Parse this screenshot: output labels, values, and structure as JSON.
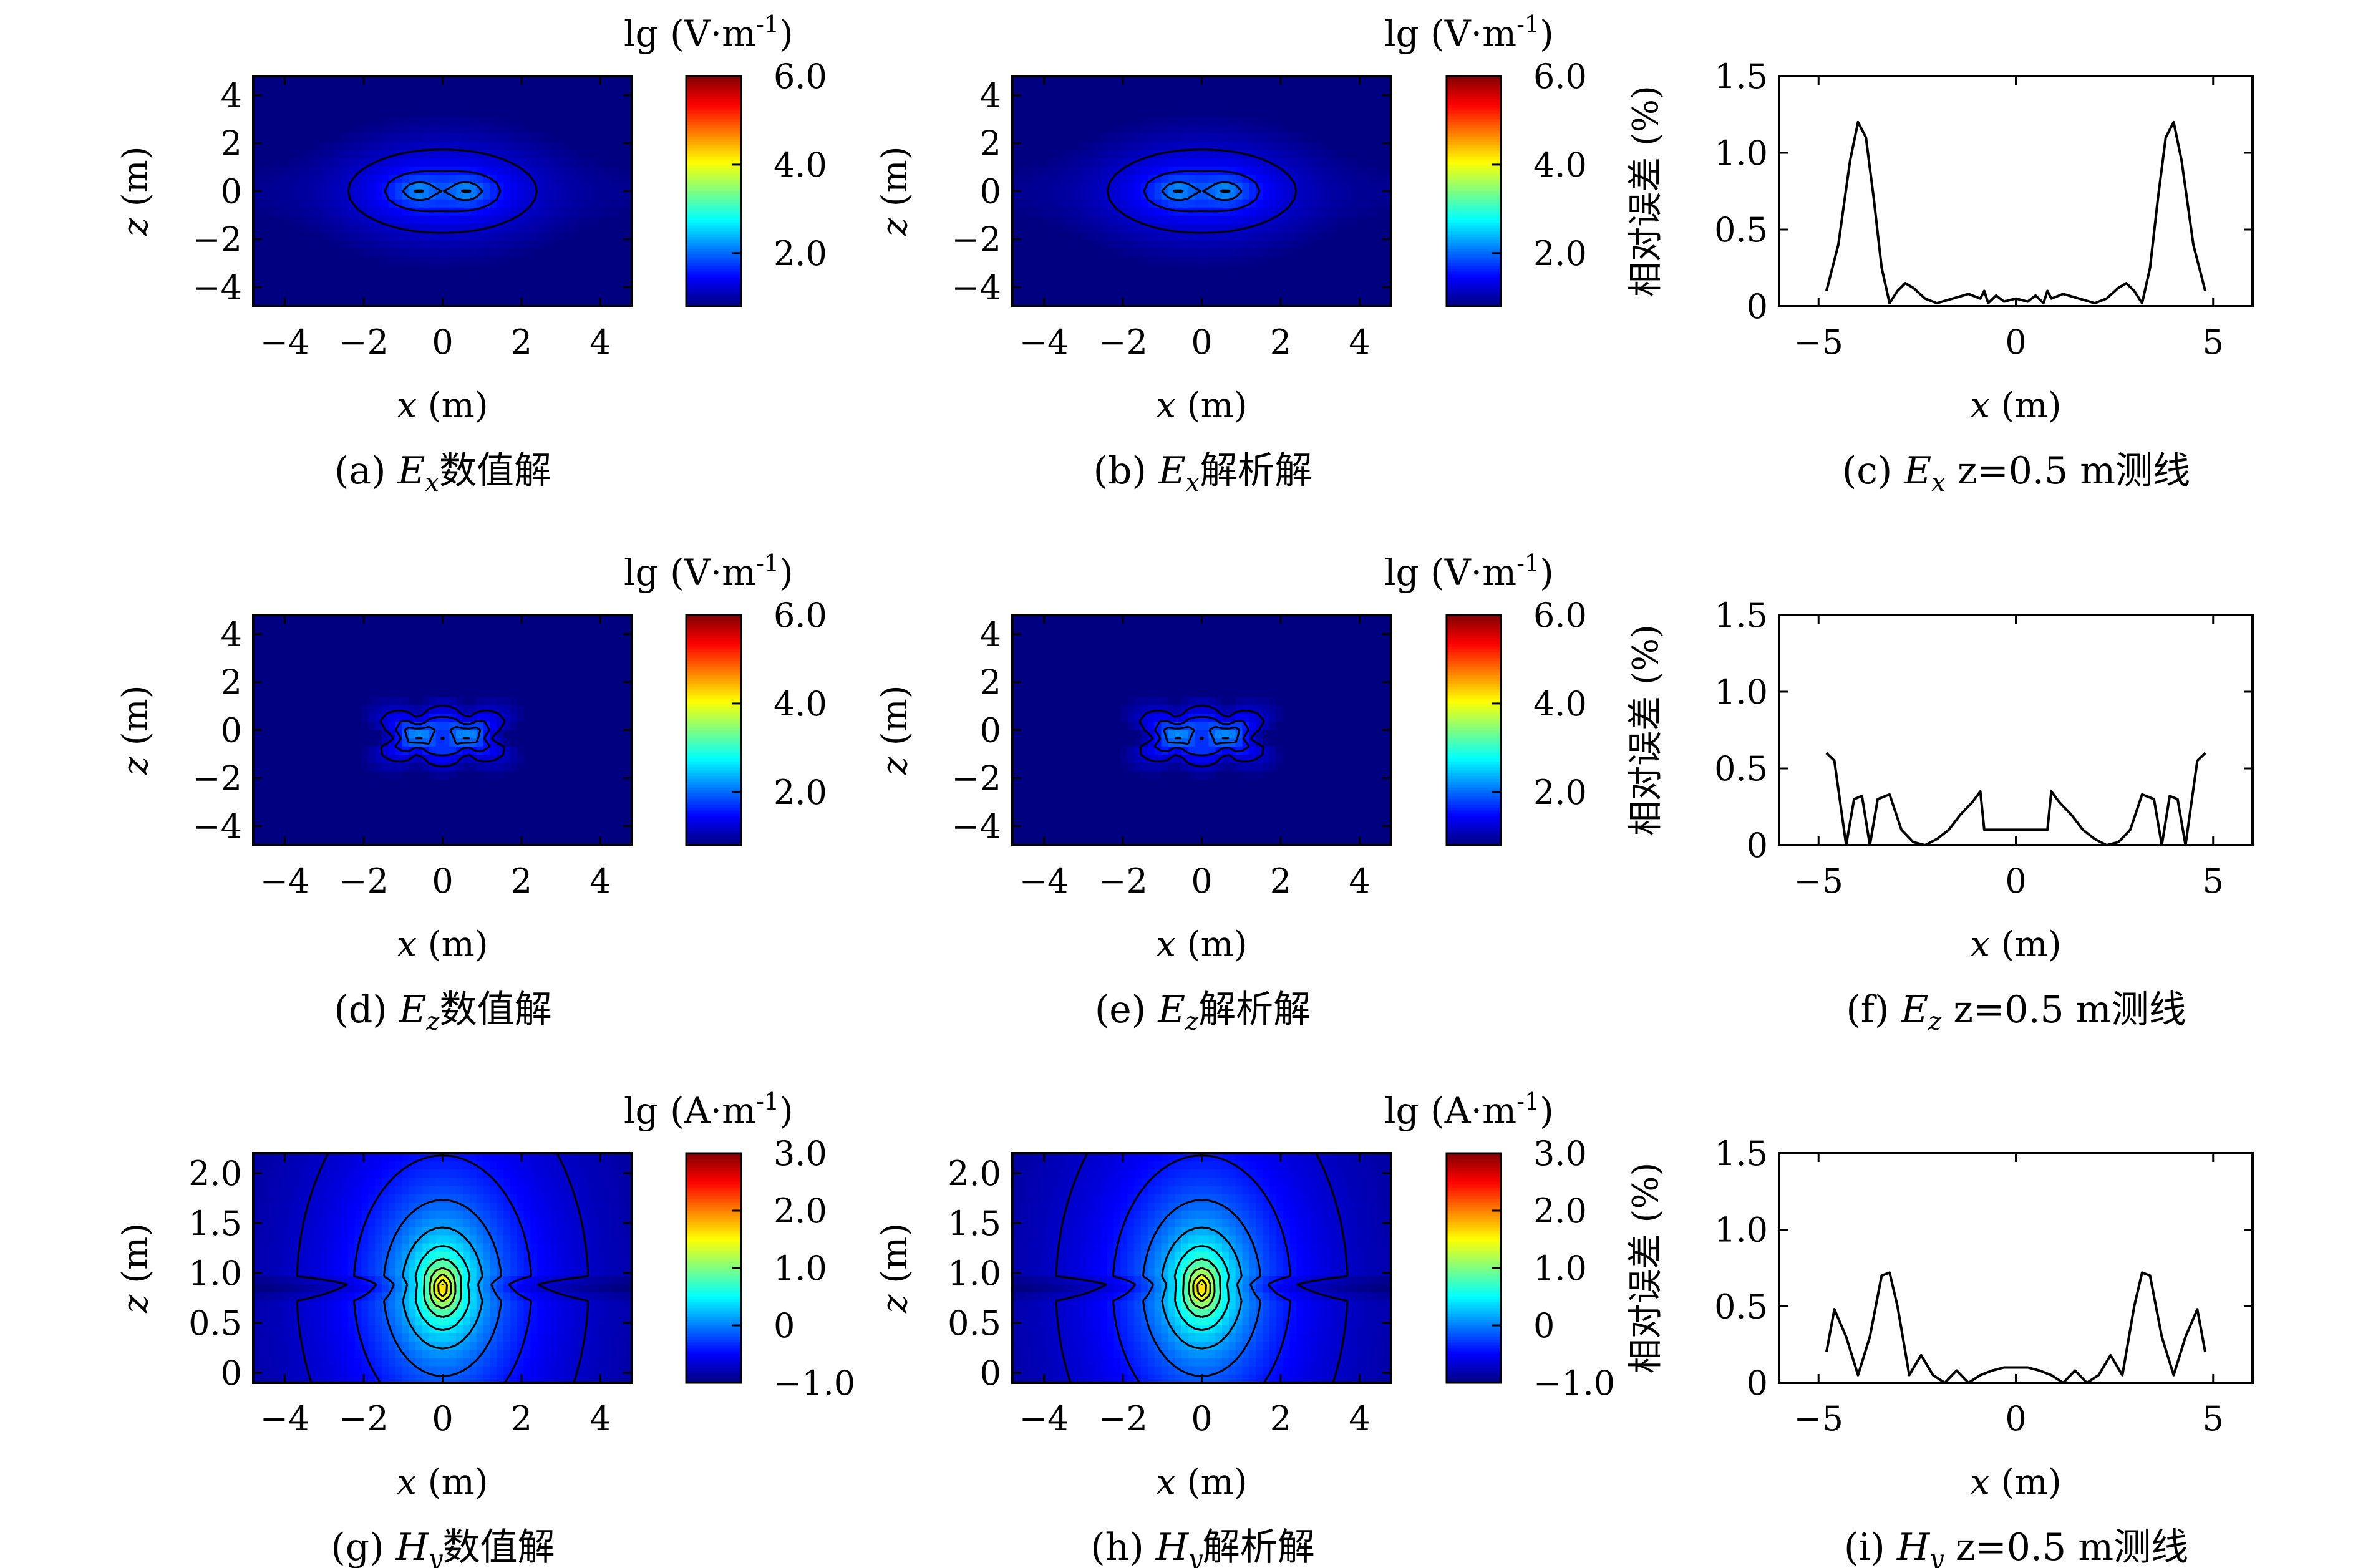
{
  "figure": {
    "rows": [
      {
        "colorbar": {
          "unit": "lg (V·m",
          "sup": "-1",
          "ticks": [
            "6.0",
            "4.0",
            "2.0"
          ],
          "range": [
            0.8,
            6.0
          ],
          "tick_values": [
            6.0,
            4.0,
            2.0
          ]
        },
        "yticks": [
          "4",
          "2",
          "0",
          "−2",
          "−4"
        ],
        "ylabel": "z (m)"
      },
      {
        "colorbar": {
          "unit": "lg (V·m",
          "sup": "-1",
          "ticks": [
            "6.0",
            "4.0",
            "2.0"
          ],
          "range": [
            0.8,
            6.0
          ],
          "tick_values": [
            6.0,
            4.0,
            2.0
          ]
        },
        "yticks": [
          "4",
          "2",
          "0",
          "−2",
          "−4"
        ],
        "ylabel": "z (m)"
      },
      {
        "colorbar": {
          "unit": "lg (A·m",
          "sup": "-1",
          "ticks": [
            "3.0",
            "2.0",
            "1.0",
            "0",
            "−1.0"
          ],
          "range": [
            -1.0,
            3.0
          ],
          "tick_values": [
            3.0,
            2.0,
            1.0,
            0,
            -1.0
          ]
        },
        "yticks": [
          "2.0",
          "1.5",
          "1.0",
          "0.5",
          "0"
        ],
        "ylabel": "z (m)"
      }
    ],
    "contour_xticks": [
      "−4",
      "−2",
      "0",
      "2",
      "4"
    ],
    "contour_xlabel": "x (m)",
    "error_xticks": [
      "−5",
      "0",
      "5"
    ],
    "error_yticks": [
      "1.5",
      "1.0",
      "0.5",
      "0"
    ],
    "error_ylabel": "相对误差 (%)",
    "error_xlabel": "x (m)",
    "captions": [
      {
        "tag": "(a)",
        "var": "E",
        "sub": "x",
        "text": "数值解"
      },
      {
        "tag": "(b)",
        "var": "E",
        "sub": "x",
        "text": "解析解"
      },
      {
        "tag": "(c)",
        "var": "E",
        "sub": "x",
        "text": " z=0.5 m测线"
      },
      {
        "tag": "(d)",
        "var": "E",
        "sub": "z",
        "text": "数值解"
      },
      {
        "tag": "(e)",
        "var": "E",
        "sub": "z",
        "text": "解析解"
      },
      {
        "tag": "(f)",
        "var": "E",
        "sub": "z",
        "text": " z=0.5 m测线"
      },
      {
        "tag": "(g)",
        "var": "H",
        "sub": "y",
        "text": "数值解"
      },
      {
        "tag": "(h)",
        "var": "H",
        "sub": "y",
        "text": "解析解"
      },
      {
        "tag": "(i)",
        "var": "H",
        "sub": "y",
        "text": " z=0.5 m测线"
      }
    ]
  },
  "chart_data": [
    {
      "panel": "(a)",
      "type": "heatmap",
      "quantity": "Ex",
      "solution": "数值解",
      "field": "dipole_x",
      "x_range": [
        -4.8,
        4.8
      ],
      "y_range": [
        -4.8,
        4.8
      ],
      "color_range": [
        0.8,
        6.0
      ],
      "colormap": "jet",
      "contour_lines": true,
      "xlabel": "x (m)",
      "ylabel": "z (m)",
      "colorbar_label": "lg (V·m-1)"
    },
    {
      "panel": "(b)",
      "type": "heatmap",
      "quantity": "Ex",
      "solution": "解析解",
      "field": "dipole_x",
      "x_range": [
        -4.8,
        4.8
      ],
      "y_range": [
        -4.8,
        4.8
      ],
      "color_range": [
        0.8,
        6.0
      ],
      "colormap": "jet",
      "contour_lines": true,
      "xlabel": "x (m)",
      "ylabel": "z (m)",
      "colorbar_label": "lg (V·m-1)"
    },
    {
      "panel": "(c)",
      "type": "line",
      "quantity": "Ex z=0.5 m",
      "xlim": [
        -6,
        6
      ],
      "ylim": [
        0,
        1.5
      ],
      "xlabel": "x (m)",
      "ylabel": "相对误差 (%)",
      "x": [
        -4.8,
        -4.5,
        -4.2,
        -4.0,
        -3.8,
        -3.6,
        -3.4,
        -3.2,
        -3.0,
        -2.8,
        -2.6,
        -2.3,
        -2.0,
        -1.6,
        -1.2,
        -0.9,
        -0.8,
        -0.7,
        -0.5,
        -0.3,
        0,
        0.3,
        0.5,
        0.7,
        0.8,
        0.9,
        1.2,
        1.6,
        2.0,
        2.3,
        2.6,
        2.8,
        3.0,
        3.2,
        3.4,
        3.6,
        3.8,
        4.0,
        4.2,
        4.5,
        4.8
      ],
      "y": [
        0.1,
        0.4,
        0.95,
        1.2,
        1.1,
        0.7,
        0.25,
        0.02,
        0.1,
        0.15,
        0.12,
        0.05,
        0.02,
        0.05,
        0.08,
        0.05,
        0.1,
        0.02,
        0.07,
        0.03,
        0.05,
        0.03,
        0.07,
        0.02,
        0.1,
        0.05,
        0.08,
        0.05,
        0.02,
        0.05,
        0.12,
        0.15,
        0.1,
        0.02,
        0.25,
        0.7,
        1.1,
        1.2,
        0.95,
        0.4,
        0.1
      ]
    },
    {
      "panel": "(d)",
      "type": "heatmap",
      "quantity": "Ez",
      "solution": "数值解",
      "field": "dipole_z_lobes",
      "x_range": [
        -4.8,
        4.8
      ],
      "y_range": [
        -4.8,
        4.8
      ],
      "color_range": [
        0.8,
        6.0
      ],
      "colormap": "jet",
      "contour_lines": true,
      "xlabel": "x (m)",
      "ylabel": "z (m)",
      "colorbar_label": "lg (V·m-1)"
    },
    {
      "panel": "(e)",
      "type": "heatmap",
      "quantity": "Ez",
      "solution": "解析解",
      "field": "dipole_z_lobes",
      "x_range": [
        -4.8,
        4.8
      ],
      "y_range": [
        -4.8,
        4.8
      ],
      "color_range": [
        0.8,
        6.0
      ],
      "colormap": "jet",
      "contour_lines": true,
      "xlabel": "x (m)",
      "ylabel": "z (m)",
      "colorbar_label": "lg (V·m-1)"
    },
    {
      "panel": "(f)",
      "type": "line",
      "quantity": "Ez z=0.5 m",
      "xlim": [
        -6,
        6
      ],
      "ylim": [
        0,
        1.5
      ],
      "xlabel": "x (m)",
      "ylabel": "相对误差 (%)",
      "x": [
        -4.8,
        -4.6,
        -4.3,
        -4.1,
        -3.9,
        -3.7,
        -3.5,
        -3.2,
        -2.9,
        -2.6,
        -2.3,
        -2.0,
        -1.7,
        -1.4,
        -1.1,
        -0.9,
        -0.8,
        -0.5,
        0,
        0.5,
        0.8,
        0.9,
        1.1,
        1.4,
        1.7,
        2.0,
        2.3,
        2.6,
        2.9,
        3.2,
        3.5,
        3.7,
        3.9,
        4.1,
        4.3,
        4.6,
        4.8
      ],
      "y": [
        0.6,
        0.55,
        0.0,
        0.3,
        0.32,
        0.0,
        0.3,
        0.33,
        0.1,
        0.02,
        0.0,
        0.04,
        0.1,
        0.2,
        0.28,
        0.35,
        0.1,
        0.1,
        0.1,
        0.1,
        0.1,
        0.35,
        0.28,
        0.2,
        0.1,
        0.04,
        0.0,
        0.02,
        0.1,
        0.33,
        0.3,
        0.0,
        0.32,
        0.3,
        0.0,
        0.55,
        0.6
      ]
    },
    {
      "panel": "(g)",
      "type": "heatmap",
      "quantity": "Hy",
      "solution": "数值解",
      "field": "source_line",
      "x_range": [
        -4.8,
        4.8
      ],
      "y_range": [
        -0.1,
        2.2
      ],
      "color_range": [
        -1.0,
        3.0
      ],
      "colormap": "jet",
      "contour_lines": true,
      "xlabel": "x (m)",
      "ylabel": "z (m)",
      "colorbar_label": "lg (A·m-1)"
    },
    {
      "panel": "(h)",
      "type": "heatmap",
      "quantity": "Hy",
      "solution": "解析解",
      "field": "source_line",
      "x_range": [
        -4.8,
        4.8
      ],
      "y_range": [
        -0.1,
        2.2
      ],
      "color_range": [
        -1.0,
        3.0
      ],
      "colormap": "jet",
      "contour_lines": true,
      "xlabel": "x (m)",
      "ylabel": "z (m)",
      "colorbar_label": "lg (A·m-1)"
    },
    {
      "panel": "(i)",
      "type": "line",
      "quantity": "Hy z=0.5 m",
      "xlim": [
        -6,
        6
      ],
      "ylim": [
        0,
        1.5
      ],
      "xlabel": "x (m)",
      "ylabel": "相对误差 (%)",
      "x": [
        -4.8,
        -4.6,
        -4.3,
        -4.0,
        -3.7,
        -3.4,
        -3.2,
        -3.0,
        -2.7,
        -2.4,
        -2.1,
        -1.8,
        -1.5,
        -1.2,
        -0.9,
        -0.6,
        -0.3,
        0,
        0.3,
        0.6,
        0.9,
        1.2,
        1.5,
        1.8,
        2.1,
        2.4,
        2.7,
        3.0,
        3.2,
        3.4,
        3.7,
        4.0,
        4.3,
        4.6,
        4.8
      ],
      "y": [
        0.2,
        0.48,
        0.3,
        0.05,
        0.3,
        0.7,
        0.72,
        0.5,
        0.05,
        0.18,
        0.05,
        0.0,
        0.08,
        0.0,
        0.05,
        0.08,
        0.1,
        0.1,
        0.1,
        0.08,
        0.05,
        0.0,
        0.08,
        0.0,
        0.05,
        0.18,
        0.05,
        0.5,
        0.72,
        0.7,
        0.3,
        0.05,
        0.3,
        0.48,
        0.2
      ]
    }
  ]
}
